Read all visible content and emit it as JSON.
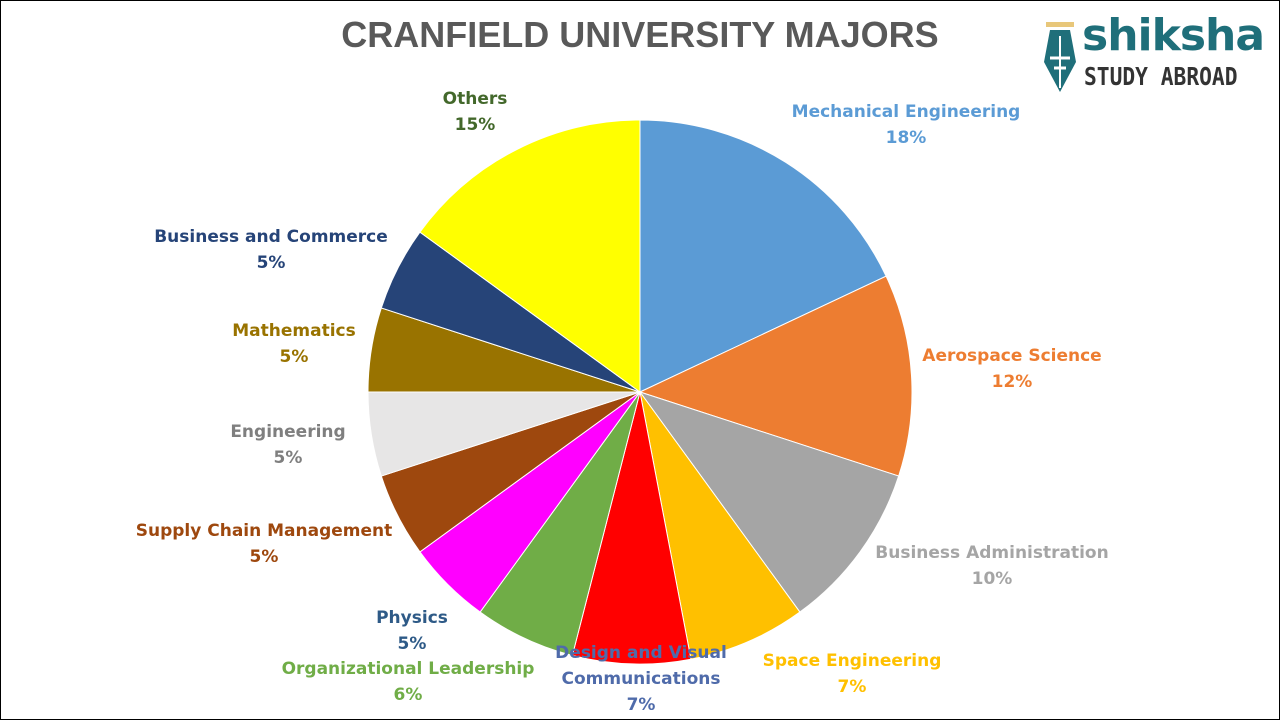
{
  "chart_data": {
    "type": "pie",
    "title": "CRANFIELD UNIVERSITY MAJORS",
    "start": "top",
    "direction": "clockwise",
    "slices": [
      {
        "label": "Mechanical Engineering",
        "value": 18,
        "display": "18%",
        "color": "#5B9BD5",
        "label_color": "#5B9BD5"
      },
      {
        "label": "Aerospace Science",
        "value": 12,
        "display": "12%",
        "color": "#ED7D31",
        "label_color": "#ED7D31"
      },
      {
        "label": "Business Administration",
        "value": 10,
        "display": "10%",
        "color": "#A5A5A5",
        "label_color": "#A5A5A5"
      },
      {
        "label": "Space Engineering",
        "value": 7,
        "display": "7%",
        "color": "#FFC000",
        "label_color": "#FFC000"
      },
      {
        "label": "Design and Visual Communications",
        "value": 7,
        "display": "7%",
        "color": "#FF0000",
        "label_color": "#4F6BAA"
      },
      {
        "label": "Organizational  Leadership",
        "value": 6,
        "display": "6%",
        "color": "#70AD47",
        "label_color": "#70AD47"
      },
      {
        "label": "Physics",
        "value": 5,
        "display": "5%",
        "color": "#FF00FF",
        "label_color": "#2E5A87"
      },
      {
        "label": "Supply Chain Management",
        "value": 5,
        "display": "5%",
        "color": "#9E480E",
        "label_color": "#9E480E"
      },
      {
        "label": "Engineering",
        "value": 5,
        "display": "5%",
        "color": "#E7E6E6",
        "label_color": "#7F7F7F"
      },
      {
        "label": "Mathematics",
        "value": 5,
        "display": "5%",
        "color": "#997300",
        "label_color": "#997300"
      },
      {
        "label": "Business and Commerce",
        "value": 5,
        "display": "5%",
        "color": "#264478",
        "label_color": "#264478"
      },
      {
        "label": "Others",
        "value": 15,
        "display": "15%",
        "color": "#FFFF00",
        "label_color": "#43682B"
      }
    ]
  },
  "logo": {
    "brand": "shiksha",
    "tagline": "STUDY ABROAD"
  }
}
